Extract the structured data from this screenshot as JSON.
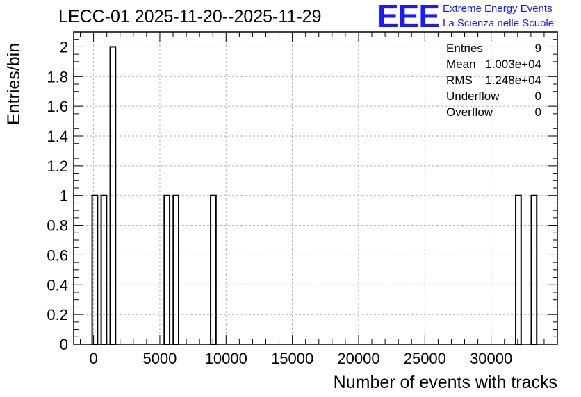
{
  "chart_data": {
    "type": "bar",
    "title": "LECC-01 2025-11-20--2025-11-29",
    "xlabel": "Number of events with tracks",
    "ylabel": "Entries/bin",
    "xlim": [
      -1500,
      35000
    ],
    "ylim": [
      0,
      2.1
    ],
    "bin_width": 405,
    "x_ticks": [
      0,
      5000,
      10000,
      15000,
      20000,
      25000,
      30000
    ],
    "y_ticks": [
      0,
      0.2,
      0.4,
      0.6,
      0.8,
      1,
      1.2,
      1.4,
      1.6,
      1.8,
      2
    ],
    "bins": [
      {
        "x": -105,
        "value": 1
      },
      {
        "x": 575,
        "value": 1
      },
      {
        "x": 1255,
        "value": 2
      },
      {
        "x": 5335,
        "value": 1
      },
      {
        "x": 6015,
        "value": 1
      },
      {
        "x": 8835,
        "value": 1
      },
      {
        "x": 31855,
        "value": 1
      },
      {
        "x": 33035,
        "value": 1
      }
    ],
    "grid": true
  },
  "logo": {
    "mark": "EEE",
    "line1": "Extreme Energy Events",
    "line2": "La Scienza nelle Scuole"
  },
  "stats": [
    {
      "key": "Entries",
      "value": "9"
    },
    {
      "key": "Mean",
      "value": "1.003e+04"
    },
    {
      "key": "RMS",
      "value": "1.248e+04"
    },
    {
      "key": "Underflow",
      "value": "0"
    },
    {
      "key": "Overflow",
      "value": "0"
    }
  ],
  "colors": {
    "logo": "#1a1aff",
    "grid": "#b0b0b0"
  }
}
